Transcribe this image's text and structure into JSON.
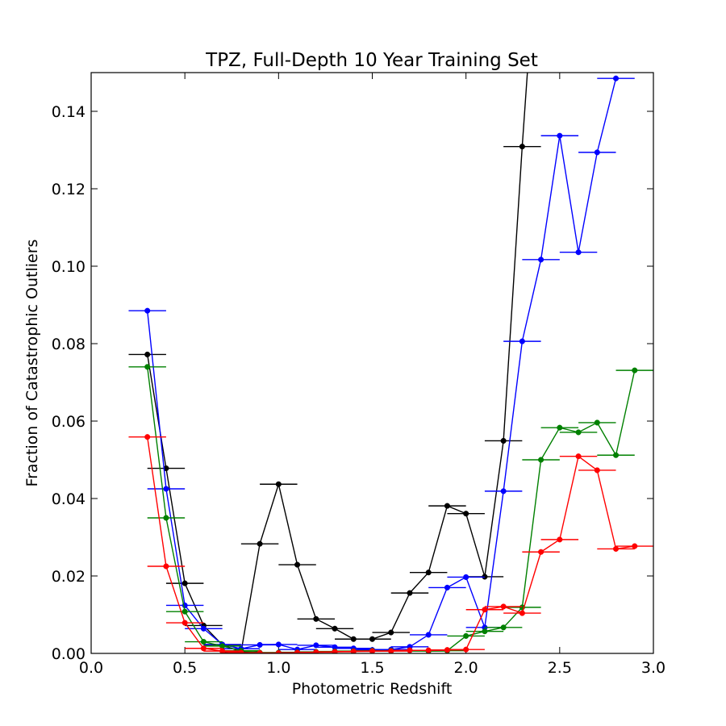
{
  "chart_data": {
    "type": "line",
    "title": "TPZ, Full-Depth 10 Year Training Set",
    "xlabel": "Photometric Redshift",
    "ylabel": "Fraction of Catastrophic Outliers",
    "xlim": [
      0.0,
      3.0
    ],
    "ylim": [
      0.0,
      0.15
    ],
    "x_ticks": [
      "0.0",
      "0.5",
      "1.0",
      "1.5",
      "2.0",
      "2.5",
      "3.0"
    ],
    "y_ticks": [
      "0.00",
      "0.02",
      "0.04",
      "0.06",
      "0.08",
      "0.10",
      "0.12",
      "0.14"
    ],
    "grid": false,
    "legend": "none",
    "x_error_halfwidth": 0.1,
    "series": [
      {
        "color": "#000000",
        "x": [
          0.3,
          0.4,
          0.5,
          0.6,
          0.7,
          0.8,
          0.9,
          1.0,
          1.1,
          1.2,
          1.3,
          1.4,
          1.5,
          1.6,
          1.7,
          1.8,
          1.9,
          2.0,
          2.1,
          2.2,
          2.3,
          2.4
        ],
        "y": [
          0.0772,
          0.0478,
          0.0181,
          0.0072,
          0.0022,
          0.0004,
          0.0283,
          0.0437,
          0.0229,
          0.0089,
          0.0064,
          0.0037,
          0.0037,
          0.0054,
          0.0156,
          0.0209,
          0.0381,
          0.0361,
          0.0198,
          0.0549,
          0.1309,
          0.2
        ]
      },
      {
        "color": "#0000ff",
        "x": [
          0.3,
          0.4,
          0.5,
          0.6,
          0.7,
          0.8,
          0.9,
          1.0,
          1.1,
          1.2,
          1.3,
          1.4,
          1.5,
          1.6,
          1.7,
          1.8,
          1.9,
          2.0,
          2.1,
          2.2,
          2.3,
          2.4,
          2.5,
          2.6,
          2.7,
          2.8
        ],
        "y": [
          0.0885,
          0.0425,
          0.0124,
          0.0064,
          0.0023,
          0.0012,
          0.0022,
          0.0023,
          0.001,
          0.0021,
          0.0016,
          0.0013,
          0.0009,
          0.001,
          0.0017,
          0.0048,
          0.017,
          0.0197,
          0.0067,
          0.0419,
          0.0806,
          0.1017,
          0.1337,
          0.1036,
          0.1294,
          0.1485
        ]
      },
      {
        "color": "#008000",
        "x": [
          0.3,
          0.4,
          0.5,
          0.6,
          0.7,
          0.8,
          0.9,
          1.0,
          1.1,
          1.2,
          1.3,
          1.4,
          1.5,
          1.6,
          1.7,
          1.8,
          1.9,
          2.0,
          2.1,
          2.2,
          2.3,
          2.4,
          2.5,
          2.6,
          2.7,
          2.8,
          2.9
        ],
        "y": [
          0.074,
          0.035,
          0.0108,
          0.003,
          0.0019,
          0.0007,
          0.0002,
          0.0002,
          0.0003,
          0.0004,
          0.0005,
          0.0006,
          0.0007,
          0.0007,
          0.0008,
          0.0006,
          0.0007,
          0.0045,
          0.0057,
          0.0067,
          0.0119,
          0.05,
          0.0583,
          0.0571,
          0.0596,
          0.0512,
          0.0731
        ]
      },
      {
        "color": "#ff0000",
        "x": [
          0.3,
          0.4,
          0.5,
          0.6,
          0.7,
          0.8,
          0.9,
          1.0,
          1.1,
          1.2,
          1.3,
          1.4,
          1.5,
          1.6,
          1.7,
          1.8,
          1.9,
          2.0,
          2.1,
          2.2,
          2.3,
          2.4,
          2.5,
          2.6,
          2.7,
          2.8,
          2.9
        ],
        "y": [
          0.0559,
          0.0225,
          0.0079,
          0.0013,
          0.0006,
          0.0002,
          0.0001,
          0.0001,
          0.0002,
          0.0003,
          0.0004,
          0.0005,
          0.0006,
          0.0006,
          0.0008,
          0.0008,
          0.0009,
          0.001,
          0.0113,
          0.0121,
          0.0104,
          0.0262,
          0.0294,
          0.0509,
          0.0473,
          0.027,
          0.0277
        ]
      }
    ]
  }
}
